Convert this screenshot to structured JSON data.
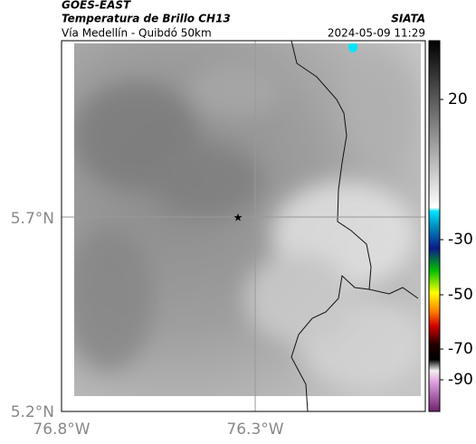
{
  "header": {
    "satellite": "GOES-EAST",
    "product": "Temperatura de Brillo CH13",
    "source": "SIATA",
    "location": "Vía Medellín - Quibdó 50km",
    "datetime": "2024-05-09 11:29"
  },
  "map": {
    "lat_ticks": [
      "5.7°N",
      "5.2°N"
    ],
    "lon_ticks": [
      "76.8°W",
      "76.3°W"
    ]
  },
  "colorbar": {
    "ticks": [
      20,
      -30,
      -50,
      -70,
      -90
    ]
  }
}
